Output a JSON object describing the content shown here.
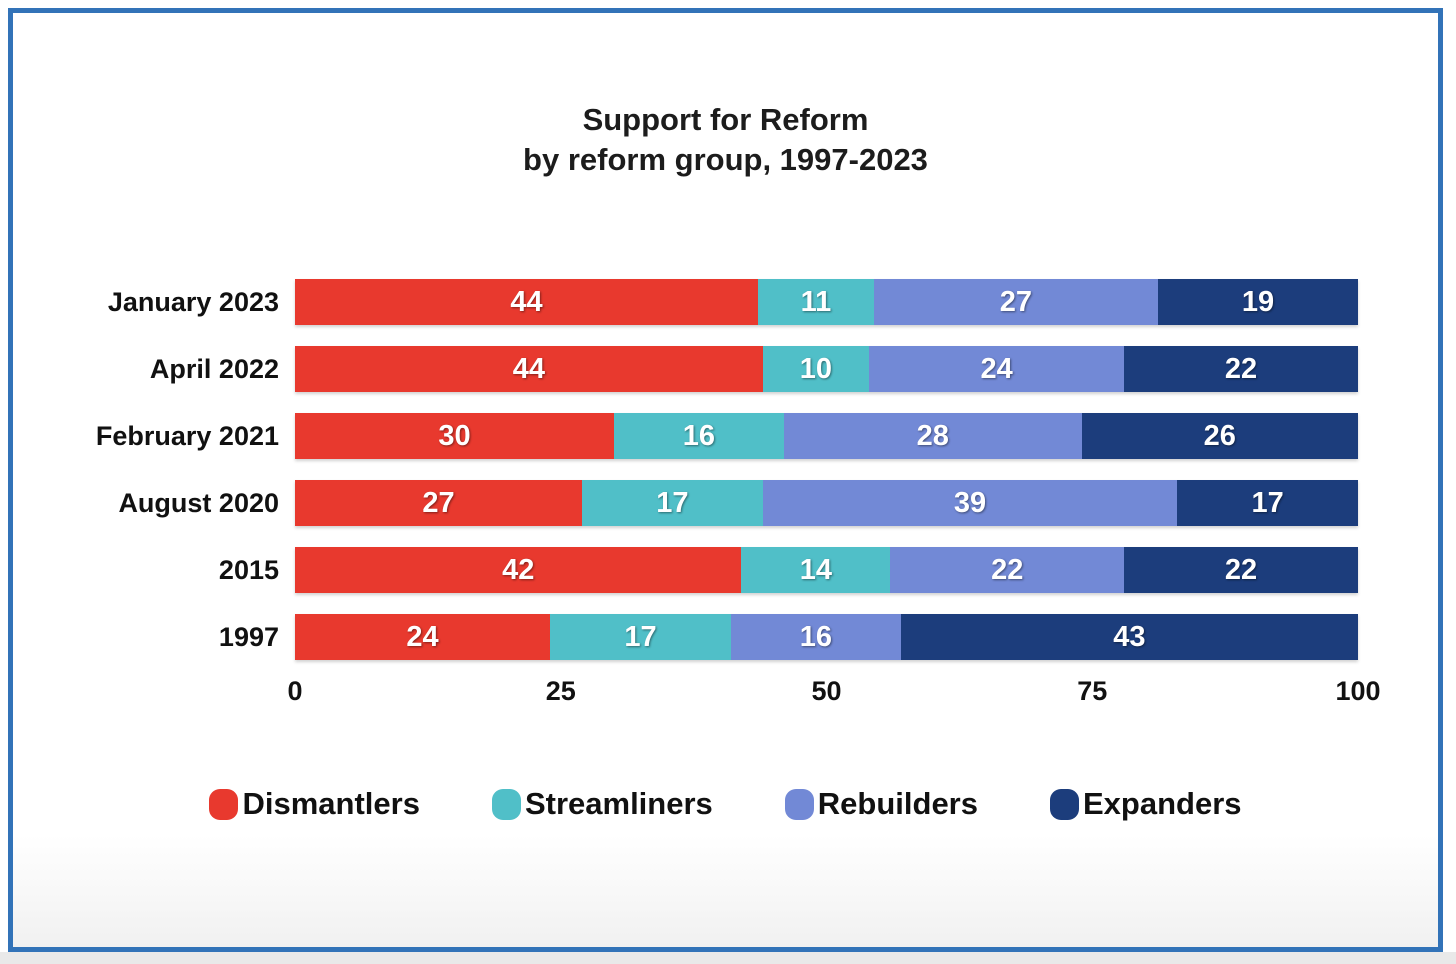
{
  "frame": {
    "border_color": "#3273b8"
  },
  "title": {
    "line1": "Support for Reform",
    "line2": "by reform group, 1997-2023"
  },
  "chart_data": {
    "type": "bar",
    "orientation": "horizontal",
    "stacked": true,
    "title": "Support for Reform by reform group, 1997-2023",
    "categories": [
      "January 2023",
      "April 2022",
      "February 2021",
      "August 2020",
      "2015",
      "1997"
    ],
    "series": [
      {
        "name": "Dismantlers",
        "color": "#e8392e",
        "values": [
          44,
          44,
          30,
          27,
          42,
          24
        ]
      },
      {
        "name": "Streamliners",
        "color": "#50bfc8",
        "values": [
          11,
          10,
          16,
          17,
          14,
          17
        ]
      },
      {
        "name": "Rebuilders",
        "color": "#7289d6",
        "values": [
          27,
          24,
          28,
          39,
          22,
          16
        ]
      },
      {
        "name": "Expanders",
        "color": "#1c3d7c",
        "values": [
          19,
          22,
          26,
          17,
          22,
          43
        ]
      }
    ],
    "x_ticks": [
      0,
      25,
      50,
      75,
      100
    ],
    "xlim": [
      0,
      100
    ],
    "grid": false,
    "value_label_color": "#ffffff",
    "legend_position": "bottom"
  }
}
